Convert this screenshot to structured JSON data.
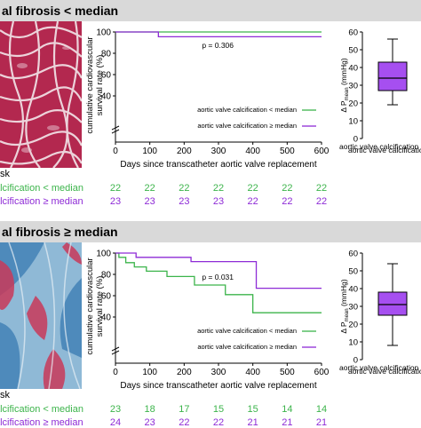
{
  "panels": [
    {
      "header": "al fibrosis < median",
      "risk_label": "sk",
      "risk_rows": [
        {
          "label": "alcification < median",
          "color": "#3cb44b",
          "counts": [
            "22",
            "22",
            "22",
            "22",
            "22",
            "22",
            "22"
          ]
        },
        {
          "label": "alcification ≥ median",
          "color": "#8e2bd6",
          "counts": [
            "23",
            "23",
            "23",
            "23",
            "22",
            "22",
            "22"
          ]
        }
      ]
    },
    {
      "header": "al fibrosis ≥ median",
      "risk_label": "sk",
      "risk_rows": [
        {
          "label": "alcification < median",
          "color": "#3cb44b",
          "counts": [
            "23",
            "18",
            "17",
            "15",
            "15",
            "14",
            "14"
          ]
        },
        {
          "label": "alcification ≥ median",
          "color": "#8e2bd6",
          "counts": [
            "24",
            "23",
            "22",
            "22",
            "21",
            "21",
            "21"
          ]
        }
      ]
    }
  ],
  "chart_data": [
    {
      "type": "line",
      "title": "",
      "xlabel": "Days since transcatheter aortic valve replacement",
      "ylabel": "cumulative cardiovascular survival rate (%)",
      "xlim": [
        0,
        600
      ],
      "xticks": [
        "0",
        "100",
        "200",
        "300",
        "400",
        "500",
        "600"
      ],
      "ylim": [
        0,
        100
      ],
      "yticks": [
        "0",
        "20",
        "40",
        "60",
        "80",
        "100"
      ],
      "annotation": "p = 0.306",
      "legend_position": "bottom-right",
      "series": [
        {
          "name": "aortic valve calcification < median",
          "color": "#3cb44b",
          "x": [
            0,
            600
          ],
          "y": [
            100,
            100
          ]
        },
        {
          "name": "aortic valve calcification ≥ median",
          "color": "#8e2bd6",
          "x": [
            0,
            125,
            600
          ],
          "y": [
            100,
            95.5,
            95.5
          ]
        }
      ]
    },
    {
      "type": "box",
      "ylabel": "Δ P mean (mmHg)",
      "ylabel_main": "Δ P",
      "ylabel_sub": "mean",
      "ylabel_unit": "(mmHg)",
      "ylim": [
        0,
        60
      ],
      "yticks": [
        "0",
        "10",
        "20",
        "30",
        "40",
        "50",
        "60"
      ],
      "legend": [
        "aortic valve calcification",
        "aortic valve calcification"
      ],
      "color": "#a64ff0",
      "whisker_low": 19,
      "q1": 27,
      "median": 34,
      "q3": 43,
      "whisker_high": 56
    },
    {
      "type": "line",
      "title": "",
      "xlabel": "Days since transcatheter aortic valve replacement",
      "ylabel": "cumulative cardiovascular survival rate (%)",
      "xlim": [
        0,
        600
      ],
      "xticks": [
        "0",
        "100",
        "200",
        "300",
        "400",
        "500",
        "600"
      ],
      "ylim": [
        0,
        100
      ],
      "yticks": [
        "0",
        "20",
        "40",
        "60",
        "80",
        "100"
      ],
      "annotation": "p = 0.031",
      "legend_position": "bottom-right",
      "series": [
        {
          "name": "aortic valve calcification < median",
          "color": "#3cb44b",
          "x": [
            0,
            10,
            30,
            55,
            90,
            150,
            230,
            320,
            400,
            600
          ],
          "y": [
            100,
            96,
            91,
            87,
            83,
            78,
            70,
            61,
            44,
            44
          ]
        },
        {
          "name": "aortic valve calcification ≥ median",
          "color": "#8e2bd6",
          "x": [
            0,
            60,
            220,
            410,
            600
          ],
          "y": [
            100,
            96,
            92,
            67,
            67
          ]
        }
      ]
    },
    {
      "type": "box",
      "ylabel": "Δ P mean (mmHg)",
      "ylabel_main": "Δ P",
      "ylabel_sub": "mean",
      "ylabel_unit": "(mmHg)",
      "ylim": [
        0,
        60
      ],
      "yticks": [
        "0",
        "10",
        "20",
        "30",
        "40",
        "50",
        "60"
      ],
      "legend": [
        "aortic valve calcification",
        "aortic valve calcification"
      ],
      "color": "#a64ff0",
      "whisker_low": 8,
      "q1": 25,
      "median": 31,
      "q3": 38,
      "whisker_high": 54
    }
  ]
}
